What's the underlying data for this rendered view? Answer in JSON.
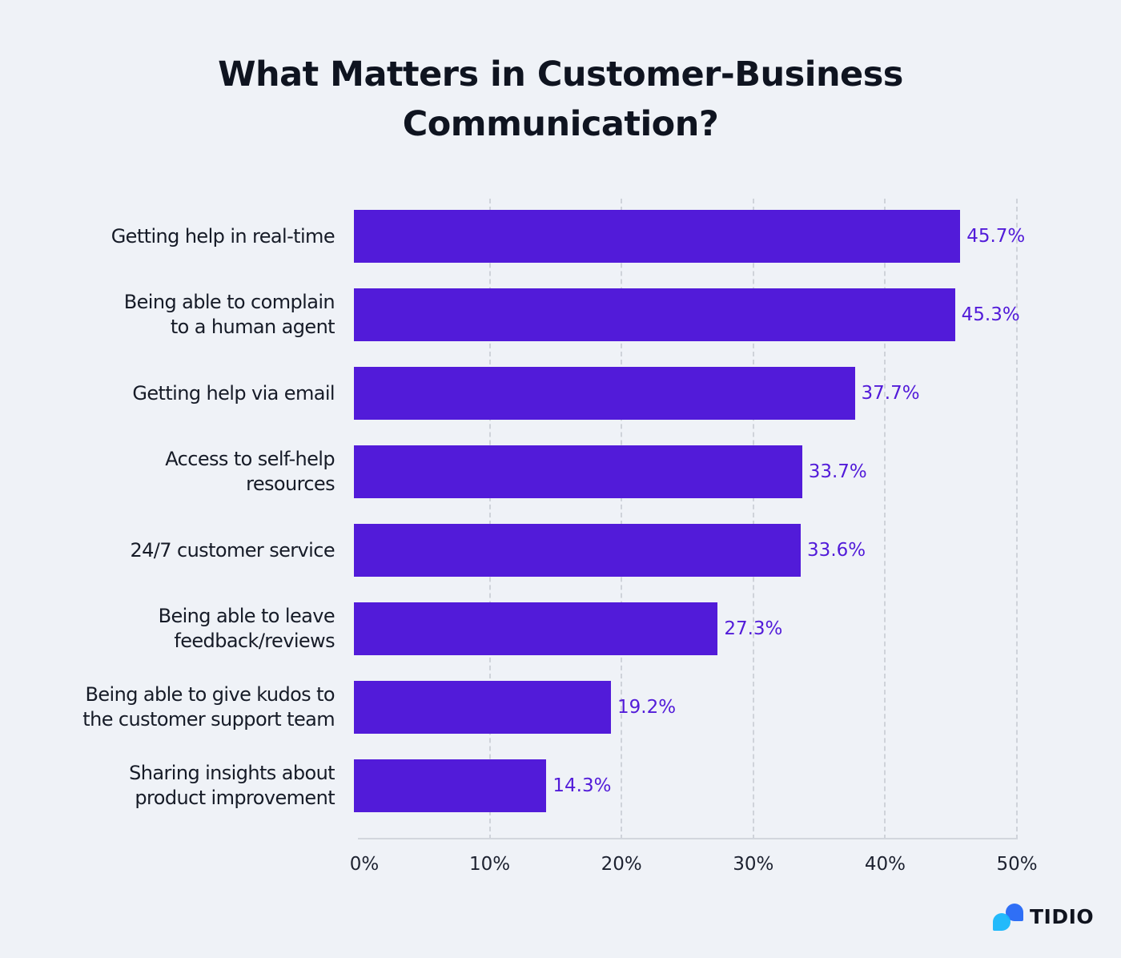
{
  "title_line1": "What Matters in Customer-Business",
  "title_line2": "Communication?",
  "bars": [
    {
      "label_lines": [
        "Getting help in real-time"
      ],
      "value": 45.7,
      "value_label": "45.7%"
    },
    {
      "label_lines": [
        "Being able to complain",
        "to a human agent"
      ],
      "value": 45.3,
      "value_label": "45.3%"
    },
    {
      "label_lines": [
        "Getting help via email"
      ],
      "value": 37.7,
      "value_label": "37.7%"
    },
    {
      "label_lines": [
        "Access to self-help",
        "resources"
      ],
      "value": 33.7,
      "value_label": "33.7%"
    },
    {
      "label_lines": [
        "24/7 customer service"
      ],
      "value": 33.6,
      "value_label": "33.6%"
    },
    {
      "label_lines": [
        "Being able to leave",
        "feedback/reviews"
      ],
      "value": 27.3,
      "value_label": "27.3%"
    },
    {
      "label_lines": [
        "Being able to give kudos to",
        "the customer support team"
      ],
      "value": 19.2,
      "value_label": "19.2%"
    },
    {
      "label_lines": [
        "Sharing insights about",
        "product improvement"
      ],
      "value": 14.3,
      "value_label": "14.3%"
    }
  ],
  "x_ticks": [
    "0%",
    "10%",
    "20%",
    "30%",
    "40%",
    "50%"
  ],
  "brand": {
    "name": "TIDIO",
    "bar_color": "#521bd9"
  },
  "chart_data": {
    "type": "bar",
    "orientation": "horizontal",
    "title": "What Matters in Customer-Business Communication?",
    "categories": [
      "Getting help in real-time",
      "Being able to complain to a human agent",
      "Getting help via email",
      "Access to self-help resources",
      "24/7 customer service",
      "Being able to leave feedback/reviews",
      "Being able to give kudos to the customer support team",
      "Sharing insights about product improvement"
    ],
    "values": [
      45.7,
      45.3,
      37.7,
      33.7,
      33.6,
      27.3,
      19.2,
      14.3
    ],
    "xlabel": "",
    "ylabel": "",
    "xlim": [
      0,
      50
    ],
    "x_ticks": [
      "0%",
      "10%",
      "20%",
      "30%",
      "40%",
      "50%"
    ],
    "grid": "vertical dashed",
    "legend": "none",
    "data_labels": true,
    "color": "#521bd9"
  }
}
